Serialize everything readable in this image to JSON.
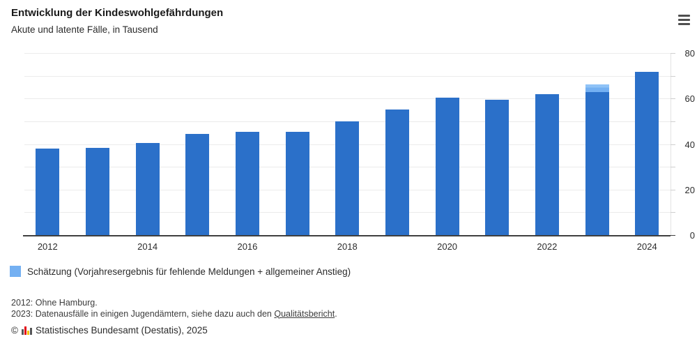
{
  "header": {
    "title": "Entwicklung der Kindeswohlgefährdungen",
    "subtitle": "Akute und latente Fälle, in Tausend",
    "menu_icon": "hamburger-menu"
  },
  "chart_data": {
    "type": "bar",
    "stacked": true,
    "title": "Entwicklung der Kindeswohlgefährdungen",
    "subtitle": "Akute und latente Fälle, in Tausend",
    "unit": "Tausend",
    "categories": [
      "2012",
      "2013",
      "2014",
      "2015",
      "2016",
      "2017",
      "2018",
      "2019",
      "2020",
      "2021",
      "2022",
      "2023",
      "2024"
    ],
    "series": [
      {
        "name": "Fälle",
        "color": "#2b70c9",
        "values": [
          38.3,
          38.7,
          40.8,
          44.9,
          45.7,
          45.8,
          50.4,
          55.5,
          60.6,
          59.9,
          62.3,
          63.0,
          72.0
        ]
      },
      {
        "name": "Schätzung",
        "color": "#74b0f2",
        "color_top": "#8fc3f7",
        "values": [
          0,
          0,
          0,
          0,
          0,
          0,
          0,
          0,
          0,
          0,
          0,
          3.5,
          0
        ]
      }
    ],
    "x_tick_labels": [
      "2012",
      "2014",
      "2016",
      "2018",
      "2020",
      "2022",
      "2024"
    ],
    "y_ticks": [
      "0",
      "20",
      "40",
      "60",
      "80"
    ],
    "y_minor_step": 10,
    "ylim": [
      0,
      80
    ],
    "grid": "horizontal",
    "legend_position": "bottom-left"
  },
  "legend": {
    "swatch_color": "#74b0f2",
    "label": "Schätzung (Vorjahresergebnis für fehlende Meldungen + allgemeiner Anstieg)"
  },
  "footnotes": {
    "line1": "2012: Ohne Hamburg.",
    "line2_prefix": "2023: Datenausfälle in einigen Jugendämtern, siehe dazu auch den ",
    "line2_link": "Qualitätsbericht",
    "line2_suffix": "."
  },
  "copyright": {
    "symbol": "©",
    "logo": "destatis-logo",
    "text": "Statistisches Bundesamt (Destatis), 2025"
  },
  "colors": {
    "bar": "#2b70c9",
    "estimate": "#74b0f2",
    "estimate_highlight": "#8fc3f7",
    "gridline": "#ebebeb",
    "axis": "#3f3f3f",
    "text": "#2b2b2b"
  }
}
